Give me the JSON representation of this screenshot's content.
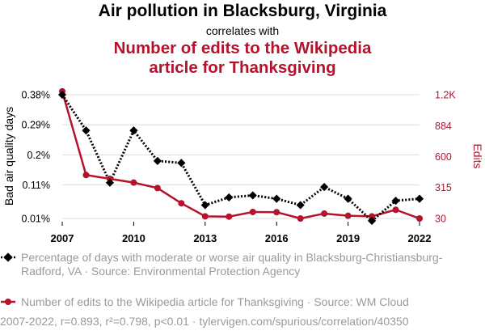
{
  "header": {
    "title": "Air pollution in Blacksburg, Virginia",
    "subtitle": "correlates with",
    "title2_line1": "Number of edits to the Wikipedia",
    "title2_line2": "article for Thanksgiving"
  },
  "legend": {
    "series1_text": "Percentage of days with moderate or worse air quality in Blacksburg-Christiansburg-Radford, VA · Source: Environmental Protection Agency",
    "series2_text": "Number of edits to the Wikipedia article for Thanksgiving · Source: WM Cloud"
  },
  "stats": "2007-2022, r=0.893, r²=0.798, p<0.01 · tylervigen.com/spurious/correlation/40350",
  "colors": {
    "series1": "#000000",
    "series2": "#b5132c",
    "grid": "#dddddd"
  },
  "chart_data": {
    "type": "line",
    "x": [
      2007,
      2008,
      2009,
      2010,
      2011,
      2012,
      2013,
      2014,
      2015,
      2016,
      2017,
      2018,
      2019,
      2020,
      2021,
      2022
    ],
    "x_ticks": [
      "2007",
      "2010",
      "2013",
      "2016",
      "2019",
      "2022"
    ],
    "xlim": [
      2007,
      2022
    ],
    "series": [
      {
        "name": "Percentage of days with moderate or worse air quality",
        "axis": "left",
        "style": "dotted",
        "marker": "diamond",
        "values": [
          0.38,
          0.273,
          0.117,
          0.273,
          0.182,
          0.176,
          0.05,
          0.073,
          0.079,
          0.069,
          0.05,
          0.104,
          0.069,
          0.003,
          0.063,
          0.069
        ]
      },
      {
        "name": "Number of edits to the Wikipedia article for Thanksgiving",
        "axis": "right",
        "style": "solid",
        "marker": "circle",
        "values": [
          1200,
          430,
          395,
          360,
          310,
          170,
          50,
          47,
          90,
          88,
          30,
          75,
          55,
          50,
          110,
          30
        ]
      }
    ],
    "y_left": {
      "label": "Bad air quality days",
      "ticks": [
        "0.01%",
        "0.11%",
        "0.2%",
        "0.29%",
        "0.38%"
      ],
      "tick_values": [
        0.01,
        0.11,
        0.2,
        0.29,
        0.38
      ],
      "lim": [
        0.01,
        0.38
      ]
    },
    "y_right": {
      "label": "Edits",
      "ticks": [
        "30",
        "315",
        "600",
        "884",
        "1.2K"
      ],
      "tick_values": [
        30,
        315,
        600,
        884,
        1169
      ],
      "lim": [
        30,
        1169
      ]
    }
  }
}
